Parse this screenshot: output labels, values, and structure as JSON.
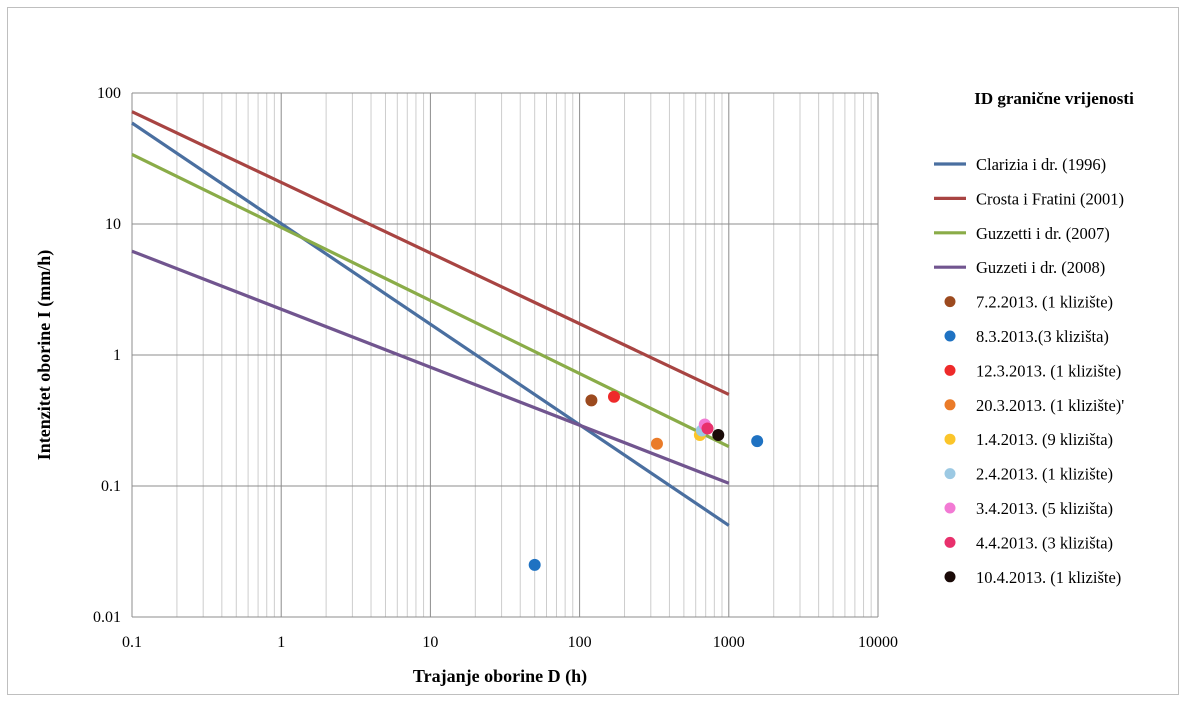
{
  "chart_data": {
    "type": "scatter",
    "title": "",
    "xlabel": "Trajanje oborine D (h)",
    "ylabel": "Intenzitet oborine I (mm/h)",
    "x_scale": "log",
    "y_scale": "log",
    "xlim": [
      0.1,
      10000
    ],
    "ylim": [
      0.01,
      100
    ],
    "x_ticks": [
      "0.1",
      "1",
      "10",
      "100",
      "1000",
      "10000"
    ],
    "y_ticks": [
      "0.01",
      "0.1",
      "1",
      "10",
      "100"
    ],
    "grid": true,
    "legend_title": "ID granične vrijenosti",
    "legend_position": "right",
    "lines": [
      {
        "name": "Clarizia i dr. (1996)",
        "color": "#4a6fa0",
        "points": [
          [
            0.1,
            59
          ],
          [
            1000,
            0.05
          ]
        ]
      },
      {
        "name": "Crosta i Fratini (2001)",
        "color": "#a84442",
        "points": [
          [
            0.1,
            72
          ],
          [
            1000,
            0.5
          ]
        ]
      },
      {
        "name": "Guzzetti i dr. (2007)",
        "color": "#8aac48",
        "points": [
          [
            0.1,
            34
          ],
          [
            1000,
            0.2
          ]
        ]
      },
      {
        "name": "Guzzeti i dr. (2008)",
        "color": "#71558f",
        "points": [
          [
            0.1,
            6.2
          ],
          [
            1000,
            0.105
          ]
        ]
      }
    ],
    "series": [
      {
        "name": "7.2.2013. (1 klizište)",
        "color": "#9c4a1f",
        "points": [
          [
            120,
            0.45
          ]
        ]
      },
      {
        "name": "8.3.2013.(3 klizišta)",
        "color": "#1f72c2",
        "points": [
          [
            50,
            0.025
          ],
          [
            1550,
            0.22
          ]
        ]
      },
      {
        "name": "12.3.2013. (1 klizište)",
        "color": "#ee2a2a",
        "points": [
          [
            170,
            0.48
          ]
        ]
      },
      {
        "name": "20.3.2013. (1 klizište)'",
        "color": "#ea7b29",
        "points": [
          [
            330,
            0.21
          ]
        ]
      },
      {
        "name": "1.4.2013. (9 klizišta)",
        "color": "#fbc52a",
        "points": [
          [
            640,
            0.245
          ]
        ]
      },
      {
        "name": "2.4.2013. (1 klizište)",
        "color": "#9cc9e3",
        "points": [
          [
            660,
            0.265
          ]
        ]
      },
      {
        "name": "3.4.2013. (5 klizišta)",
        "color": "#f27ad4",
        "points": [
          [
            690,
            0.295
          ]
        ]
      },
      {
        "name": "4.4.2013. (3 klizišta)",
        "color": "#e8306c",
        "points": [
          [
            720,
            0.275
          ]
        ]
      },
      {
        "name": "10.4.2013. (1 klizište)",
        "color": "#1a0a08",
        "points": [
          [
            850,
            0.245
          ]
        ]
      }
    ]
  }
}
